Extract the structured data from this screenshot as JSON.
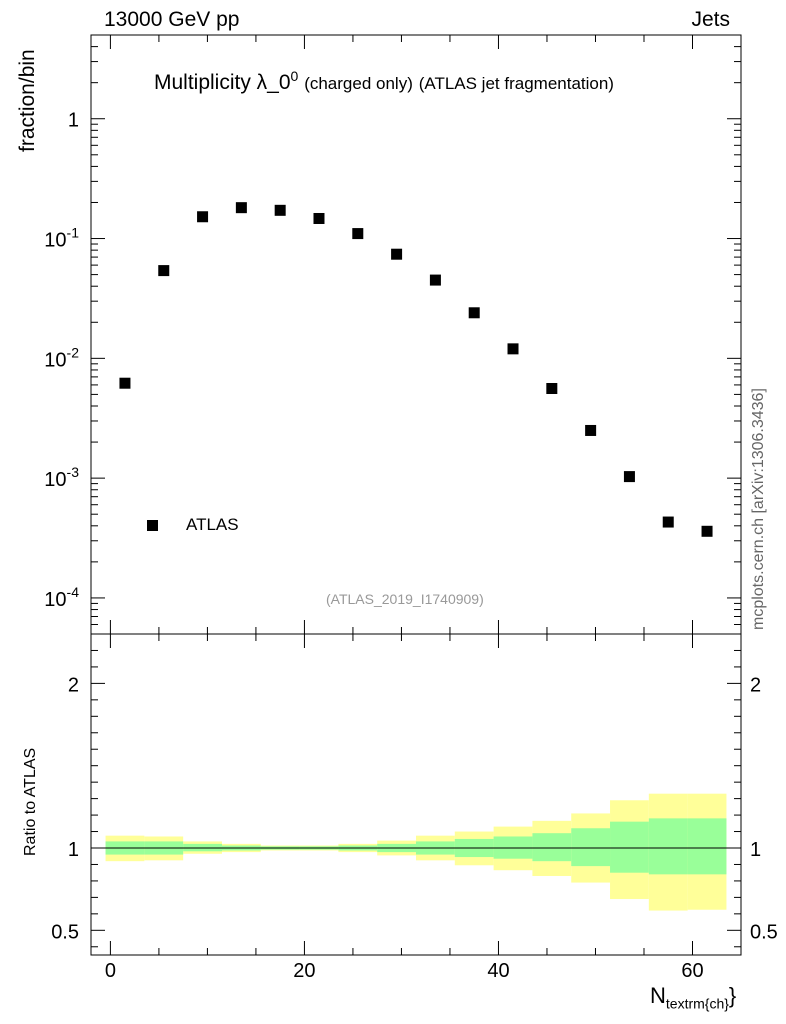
{
  "header": {
    "energy_label": "13000 GeV pp",
    "group_label": "Jets"
  },
  "title": {
    "main": "Multiplicity λ_0",
    "superscript": "0",
    "sub1": "(charged only)",
    "sub2": "(ATLAS jet fragmentation)"
  },
  "axes": {
    "top_ylabel": "fraction/bin",
    "bottom_ylabel": "Ratio to ATLAS",
    "xlabel_main": "N",
    "xlabel_sub": "textrm{ch}",
    "xlabel_close": "}"
  },
  "side_text": "mcplots.cern.ch [arXiv:1306.3436]",
  "analysis_id": "(ATLAS_2019_I1740909)",
  "legend": {
    "label": "ATLAS"
  },
  "chart_data": {
    "type": "scatter",
    "title": "Multiplicity λ_0^0 (charged only) (ATLAS jet fragmentation)",
    "xlabel": "N_{textrm{ch}}",
    "ylabel": "fraction/bin",
    "xlim": [
      -2,
      65
    ],
    "ylim_log": [
      5e-05,
      5
    ],
    "xticks": [
      "0",
      "20",
      "40",
      "60"
    ],
    "yticks": [
      {
        "mant": "10",
        "exp": "-4",
        "value": 0.0001
      },
      {
        "mant": "10",
        "exp": "-3",
        "value": 0.001
      },
      {
        "mant": "10",
        "exp": "-2",
        "value": 0.01
      },
      {
        "mant": "10",
        "exp": "-1",
        "value": 0.1
      },
      {
        "mant": "1",
        "exp": "",
        "value": 1
      }
    ],
    "series": [
      {
        "name": "ATLAS",
        "x": [
          1.5,
          5.5,
          9.5,
          13.5,
          17.5,
          21.5,
          25.5,
          29.5,
          33.5,
          37.5,
          41.5,
          45.5,
          49.5,
          53.5,
          57.5,
          61.5
        ],
        "values": [
          0.0062,
          0.054,
          0.152,
          0.181,
          0.172,
          0.147,
          0.11,
          0.074,
          0.045,
          0.024,
          0.012,
          0.0056,
          0.0025,
          0.00103,
          0.00043,
          0.00036
        ]
      }
    ],
    "ratio_panel": {
      "ylabel": "Ratio to ATLAS",
      "ylim": [
        0.35,
        2.3
      ],
      "yticks": [
        "0.5",
        "1",
        "2"
      ],
      "bin_edges": [
        -0.5,
        3.5,
        7.5,
        11.5,
        15.5,
        19.5,
        23.5,
        27.5,
        31.5,
        35.5,
        39.5,
        43.5,
        47.5,
        51.5,
        55.5,
        59.5,
        63.5
      ],
      "inner_band_low": [
        0.96,
        0.96,
        0.98,
        0.985,
        0.99,
        0.99,
        0.985,
        0.975,
        0.96,
        0.945,
        0.935,
        0.92,
        0.89,
        0.85,
        0.84,
        0.84
      ],
      "inner_band_high": [
        1.04,
        1.04,
        1.025,
        1.015,
        1.01,
        1.01,
        1.015,
        1.025,
        1.04,
        1.055,
        1.07,
        1.09,
        1.12,
        1.16,
        1.18,
        1.18
      ],
      "outer_band_low": [
        0.92,
        0.925,
        0.965,
        0.975,
        0.985,
        0.985,
        0.975,
        0.955,
        0.925,
        0.895,
        0.865,
        0.83,
        0.79,
        0.69,
        0.62,
        0.625
      ],
      "outer_band_high": [
        1.075,
        1.07,
        1.04,
        1.025,
        1.015,
        1.015,
        1.025,
        1.045,
        1.075,
        1.1,
        1.13,
        1.165,
        1.21,
        1.29,
        1.33,
        1.33
      ],
      "band_colors": {
        "outer": "#ffff99",
        "inner": "#99ff99"
      },
      "reference_line": 1
    }
  }
}
